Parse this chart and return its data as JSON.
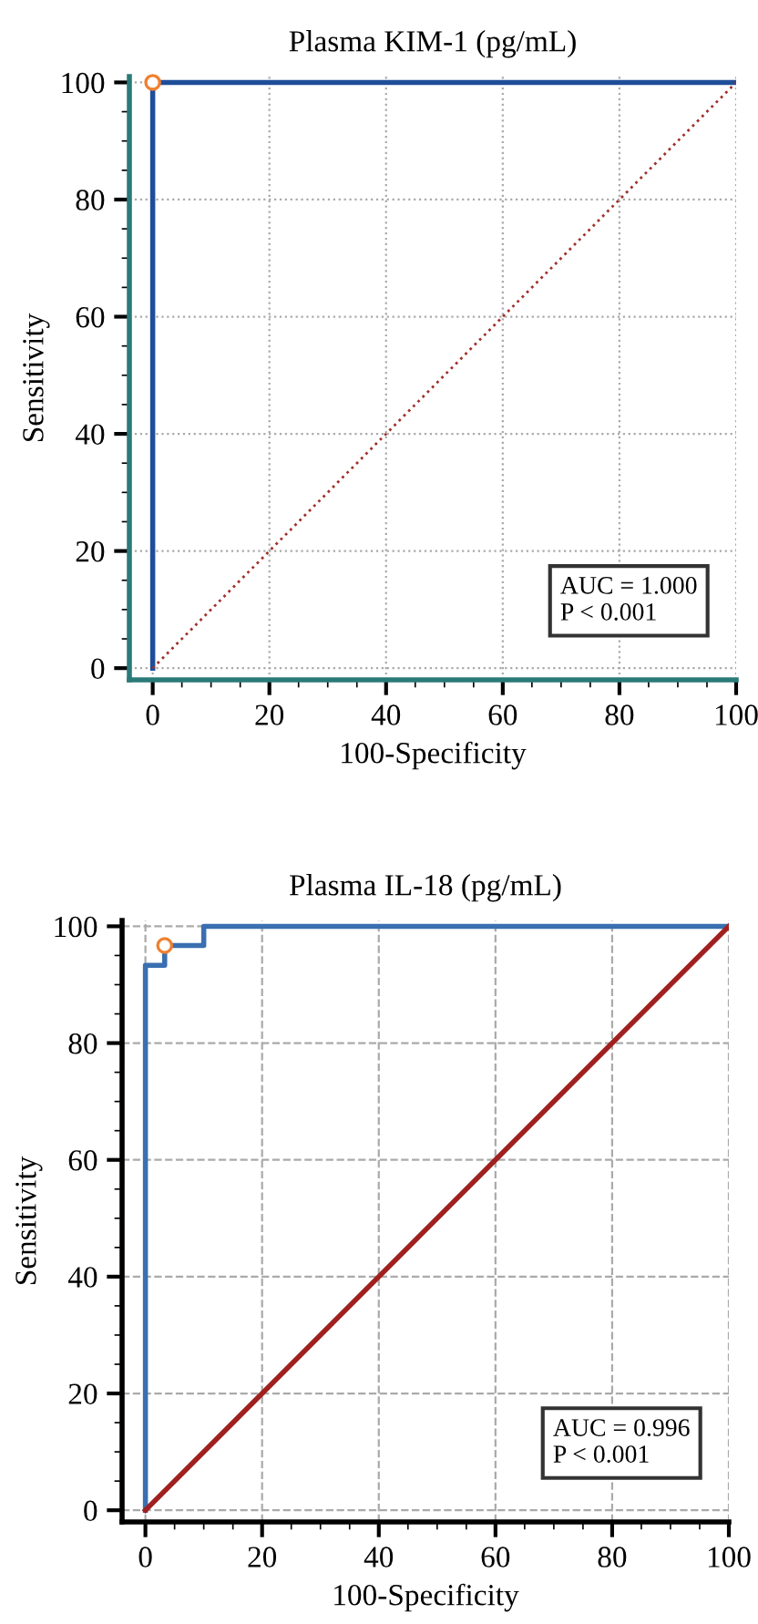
{
  "chart_data": [
    {
      "type": "line",
      "title": "Plasma KIM-1 (pg/mL)",
      "xlabel": "100-Specificity",
      "ylabel": "Sensitivity",
      "xlim": [
        -4,
        100
      ],
      "ylim": [
        -2,
        101
      ],
      "xticks": [
        0,
        20,
        40,
        60,
        80,
        100
      ],
      "yticks": [
        0,
        20,
        40,
        60,
        80,
        100
      ],
      "grid": true,
      "annotations": [
        "AUC = 1.000\nP < 0.001"
      ],
      "series": [
        {
          "x": [
            0,
            0,
            100
          ],
          "values": [
            0,
            100,
            100
          ],
          "color": "#1f4e99",
          "line_style": "solid",
          "marker": "none"
        },
        {
          "x": [
            0,
            100
          ],
          "values": [
            0,
            100
          ],
          "color": "#a0302a",
          "line_style": "dotted",
          "marker": "none"
        },
        {
          "type": "scatter",
          "x": [
            0
          ],
          "values": [
            100
          ],
          "color": "#f08030",
          "marker": "circle"
        }
      ]
    },
    {
      "type": "line",
      "title": "Plasma IL-18 (pg/mL)",
      "xlabel": "100-Specificity",
      "ylabel": "Sensitivity",
      "xlim": [
        -4,
        100
      ],
      "ylim": [
        -2,
        101
      ],
      "xticks": [
        0,
        20,
        40,
        60,
        80,
        100
      ],
      "yticks": [
        0,
        20,
        40,
        60,
        80,
        100
      ],
      "grid": true,
      "annotations": [
        "AUC = 0.996\nP < 0.001"
      ],
      "series": [
        {
          "x": [
            0,
            0,
            3.3,
            3.3,
            10,
            10,
            100
          ],
          "values": [
            0,
            93.3,
            93.3,
            96.7,
            96.7,
            100,
            100
          ],
          "color": "#3a6fb0",
          "line_style": "solid",
          "marker": "none"
        },
        {
          "x": [
            0,
            100
          ],
          "values": [
            0,
            100
          ],
          "color": "#a02020",
          "line_style": "solid",
          "marker": "none"
        },
        {
          "type": "scatter",
          "x": [
            3.3
          ],
          "values": [
            96.7
          ],
          "color": "#f08030",
          "marker": "circle"
        }
      ]
    }
  ]
}
